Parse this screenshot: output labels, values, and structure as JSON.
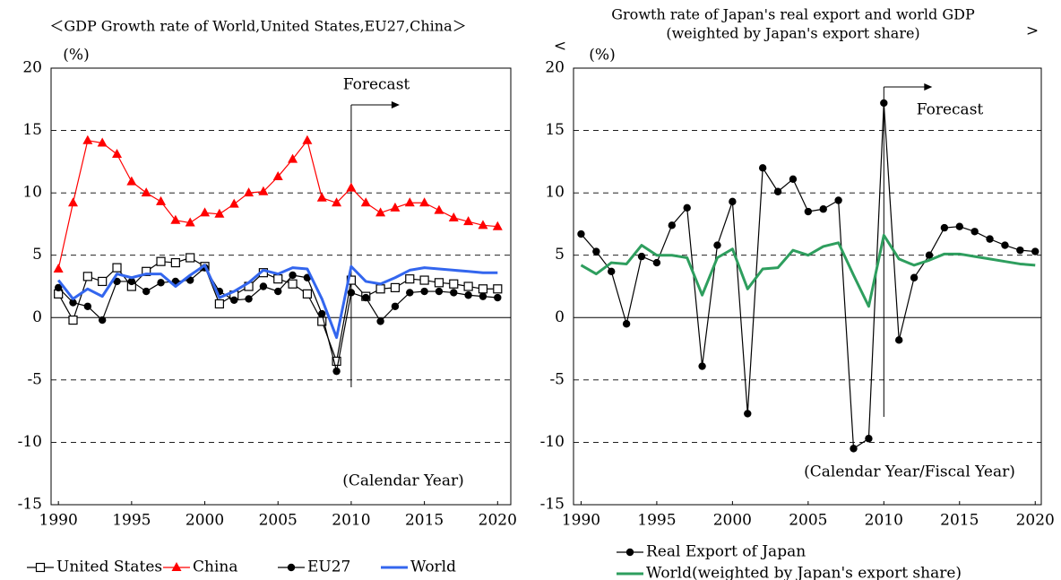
{
  "chart_data": [
    {
      "type": "line",
      "title": "＜GDP Growth rate of World,United States,EU27,China＞",
      "y_unit": "(%)",
      "forecast": "Forecast",
      "forecast_x": 2010,
      "period": "(Calendar Year)",
      "x": [
        1990,
        1991,
        1992,
        1993,
        1994,
        1995,
        1996,
        1997,
        1998,
        1999,
        2000,
        2001,
        2002,
        2003,
        2004,
        2005,
        2006,
        2007,
        2008,
        2009,
        2010,
        2011,
        2012,
        2013,
        2014,
        2015,
        2016,
        2017,
        2018,
        2019,
        2020
      ],
      "xlim": [
        1989.5,
        2020.9
      ],
      "xticks": [
        1990,
        1995,
        2000,
        2005,
        2010,
        2015,
        2020
      ],
      "ylim": [
        -15,
        20
      ],
      "yticks": [
        -15,
        -10,
        -5,
        0,
        5,
        10,
        15,
        20
      ],
      "grid": true,
      "series": [
        {
          "name": "United States",
          "color": "#000000",
          "marker": "square",
          "values": [
            1.9,
            -0.2,
            3.3,
            2.9,
            4.0,
            2.5,
            3.7,
            4.5,
            4.4,
            4.8,
            4.1,
            1.1,
            1.8,
            2.5,
            3.6,
            3.1,
            2.7,
            1.9,
            -0.3,
            -3.5,
            3.0,
            1.7,
            2.3,
            2.4,
            3.1,
            3.0,
            2.8,
            2.7,
            2.5,
            2.3,
            2.3
          ]
        },
        {
          "name": "China",
          "color": "#ff0000",
          "marker": "triangle",
          "values": [
            3.9,
            9.2,
            14.2,
            14.0,
            13.1,
            10.9,
            10.0,
            9.3,
            7.8,
            7.6,
            8.4,
            8.3,
            9.1,
            10.0,
            10.1,
            11.3,
            12.7,
            14.2,
            9.6,
            9.2,
            10.4,
            9.2,
            8.4,
            8.8,
            9.2,
            9.2,
            8.6,
            8.0,
            7.7,
            7.4,
            7.3
          ]
        },
        {
          "name": "EU27",
          "color": "#000000",
          "marker": "circle",
          "values": [
            2.4,
            1.2,
            0.9,
            -0.2,
            2.9,
            2.9,
            2.1,
            2.8,
            2.9,
            3.0,
            4.0,
            2.1,
            1.4,
            1.5,
            2.5,
            2.1,
            3.4,
            3.2,
            0.3,
            -4.3,
            2.0,
            1.6,
            -0.3,
            0.9,
            2.0,
            2.1,
            2.1,
            2.0,
            1.8,
            1.7,
            1.6
          ]
        },
        {
          "name": "World",
          "color": "#3366ee",
          "marker": "none",
          "values": [
            3.0,
            1.5,
            2.3,
            1.7,
            3.5,
            3.2,
            3.5,
            3.5,
            2.5,
            3.4,
            4.2,
            1.6,
            2.1,
            2.8,
            3.8,
            3.5,
            4.0,
            3.9,
            1.5,
            -1.6,
            4.1,
            2.9,
            2.7,
            3.2,
            3.8,
            4.0,
            3.9,
            3.8,
            3.7,
            3.6,
            3.6
          ]
        }
      ]
    },
    {
      "type": "line",
      "title_marks": [
        "<",
        ">"
      ],
      "title": [
        "Growth rate of Japan's real export and world GDP",
        "(weighted by Japan's export share)"
      ],
      "y_unit": "(%)",
      "forecast": "Forecast",
      "forecast_x": 2010,
      "period": "(Calendar Year/Fiscal Year)",
      "x": [
        1990,
        1991,
        1992,
        1993,
        1994,
        1995,
        1996,
        1997,
        1998,
        1999,
        2000,
        2001,
        2002,
        2003,
        2004,
        2005,
        2006,
        2007,
        2008,
        2009,
        2010,
        2011,
        2012,
        2013,
        2014,
        2015,
        2016,
        2017,
        2018,
        2019,
        2020
      ],
      "xlim": [
        1989.5,
        2020.4
      ],
      "xticks": [
        1990,
        1995,
        2000,
        2005,
        2010,
        2015,
        2020
      ],
      "ylim": [
        -15,
        20
      ],
      "yticks": [
        -15,
        -10,
        -5,
        0,
        5,
        10,
        15,
        20
      ],
      "grid": true,
      "series": [
        {
          "name": "Real Export of Japan",
          "color": "#000000",
          "marker": "circle",
          "values": [
            6.7,
            5.3,
            3.7,
            -0.5,
            4.9,
            4.4,
            7.4,
            8.8,
            -3.9,
            5.8,
            9.3,
            -7.7,
            12.0,
            10.1,
            11.1,
            8.5,
            8.7,
            9.4,
            -10.5,
            -9.7,
            17.2,
            -1.8,
            3.2,
            5.0,
            7.2,
            7.3,
            6.9,
            6.3,
            5.8,
            5.4,
            5.3
          ]
        },
        {
          "name": "World(weighted by Japan's export share)",
          "color": "#2e9e5e",
          "marker": "none",
          "values": [
            4.2,
            3.5,
            4.4,
            4.3,
            5.8,
            5.0,
            5.0,
            4.8,
            1.8,
            4.8,
            5.5,
            2.3,
            3.9,
            4.0,
            5.4,
            5.0,
            5.7,
            6.0,
            3.4,
            0.9,
            6.6,
            4.7,
            4.2,
            4.6,
            5.1,
            5.1,
            4.9,
            4.7,
            4.5,
            4.3,
            4.2
          ]
        }
      ]
    }
  ]
}
